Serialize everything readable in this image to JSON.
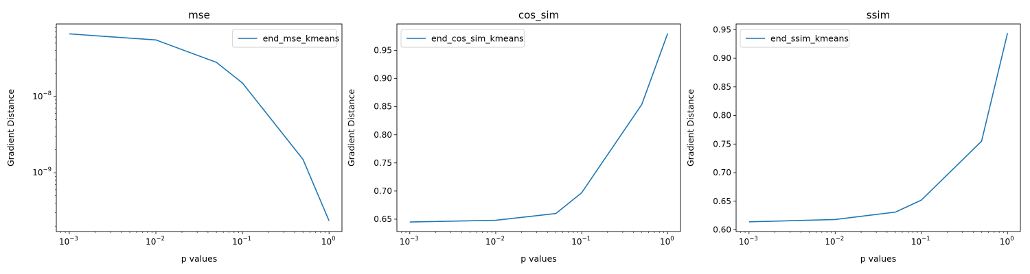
{
  "chart_data": [
    {
      "type": "line",
      "title": "mse",
      "xlabel": "p values",
      "ylabel": "Gradient Distance",
      "xscale": "log",
      "yscale": "log",
      "xlim": [
        0.000708,
        1.41
      ],
      "ylim": [
        1.7e-10,
        8.9e-08
      ],
      "xticks": [
        {
          "value": 0.001,
          "base": "10",
          "exp": "−3"
        },
        {
          "value": 0.01,
          "base": "10",
          "exp": "−2"
        },
        {
          "value": 0.1,
          "base": "10",
          "exp": "−1"
        },
        {
          "value": 1,
          "base": "10",
          "exp": "0"
        }
      ],
      "yticks": [
        {
          "value": 1e-09,
          "base": "10",
          "exp": "−9"
        },
        {
          "value": 1e-08,
          "base": "10",
          "exp": "−8"
        }
      ],
      "legend": "top-right",
      "color": "#1f77b4",
      "series": [
        {
          "name": "end_mse_kmeans",
          "x": [
            0.001,
            0.01,
            0.05,
            0.1,
            0.5,
            1
          ],
          "y": [
            6.6e-08,
            5.5e-08,
            2.8e-08,
            1.5e-08,
            1.5e-09,
            2.35e-10
          ]
        }
      ]
    },
    {
      "type": "line",
      "title": "cos_sim",
      "xlabel": "p values",
      "ylabel": "Gradient Distance",
      "xscale": "log",
      "yscale": "linear",
      "xlim": [
        0.000708,
        1.41
      ],
      "ylim": [
        0.628,
        0.997
      ],
      "xticks": [
        {
          "value": 0.001,
          "base": "10",
          "exp": "−3"
        },
        {
          "value": 0.01,
          "base": "10",
          "exp": "−2"
        },
        {
          "value": 0.1,
          "base": "10",
          "exp": "−1"
        },
        {
          "value": 1,
          "base": "10",
          "exp": "0"
        }
      ],
      "yticks": [
        {
          "value": 0.65,
          "label": "0.65"
        },
        {
          "value": 0.7,
          "label": "0.70"
        },
        {
          "value": 0.75,
          "label": "0.75"
        },
        {
          "value": 0.8,
          "label": "0.80"
        },
        {
          "value": 0.85,
          "label": "0.85"
        },
        {
          "value": 0.9,
          "label": "0.90"
        },
        {
          "value": 0.95,
          "label": "0.95"
        }
      ],
      "legend": "top-left",
      "color": "#1f77b4",
      "series": [
        {
          "name": "end_cos_sim_kmeans",
          "x": [
            0.001,
            0.01,
            0.05,
            0.1,
            0.5,
            1
          ],
          "y": [
            0.645,
            0.648,
            0.66,
            0.697,
            0.854,
            0.98
          ]
        }
      ]
    },
    {
      "type": "line",
      "title": "ssim",
      "xlabel": "p values",
      "ylabel": "Gradient Distance",
      "xscale": "log",
      "yscale": "linear",
      "xlim": [
        0.000708,
        1.41
      ],
      "ylim": [
        0.597,
        0.96
      ],
      "xticks": [
        {
          "value": 0.001,
          "base": "10",
          "exp": "−3"
        },
        {
          "value": 0.01,
          "base": "10",
          "exp": "−2"
        },
        {
          "value": 0.1,
          "base": "10",
          "exp": "−1"
        },
        {
          "value": 1,
          "base": "10",
          "exp": "0"
        }
      ],
      "yticks": [
        {
          "value": 0.6,
          "label": "0.60"
        },
        {
          "value": 0.65,
          "label": "0.65"
        },
        {
          "value": 0.7,
          "label": "0.70"
        },
        {
          "value": 0.75,
          "label": "0.75"
        },
        {
          "value": 0.8,
          "label": "0.80"
        },
        {
          "value": 0.85,
          "label": "0.85"
        },
        {
          "value": 0.9,
          "label": "0.90"
        },
        {
          "value": 0.95,
          "label": "0.95"
        }
      ],
      "legend": "top-left",
      "color": "#1f77b4",
      "series": [
        {
          "name": "end_ssim_kmeans",
          "x": [
            0.001,
            0.01,
            0.05,
            0.1,
            0.5,
            1
          ],
          "y": [
            0.614,
            0.618,
            0.631,
            0.652,
            0.755,
            0.944
          ]
        }
      ]
    }
  ]
}
